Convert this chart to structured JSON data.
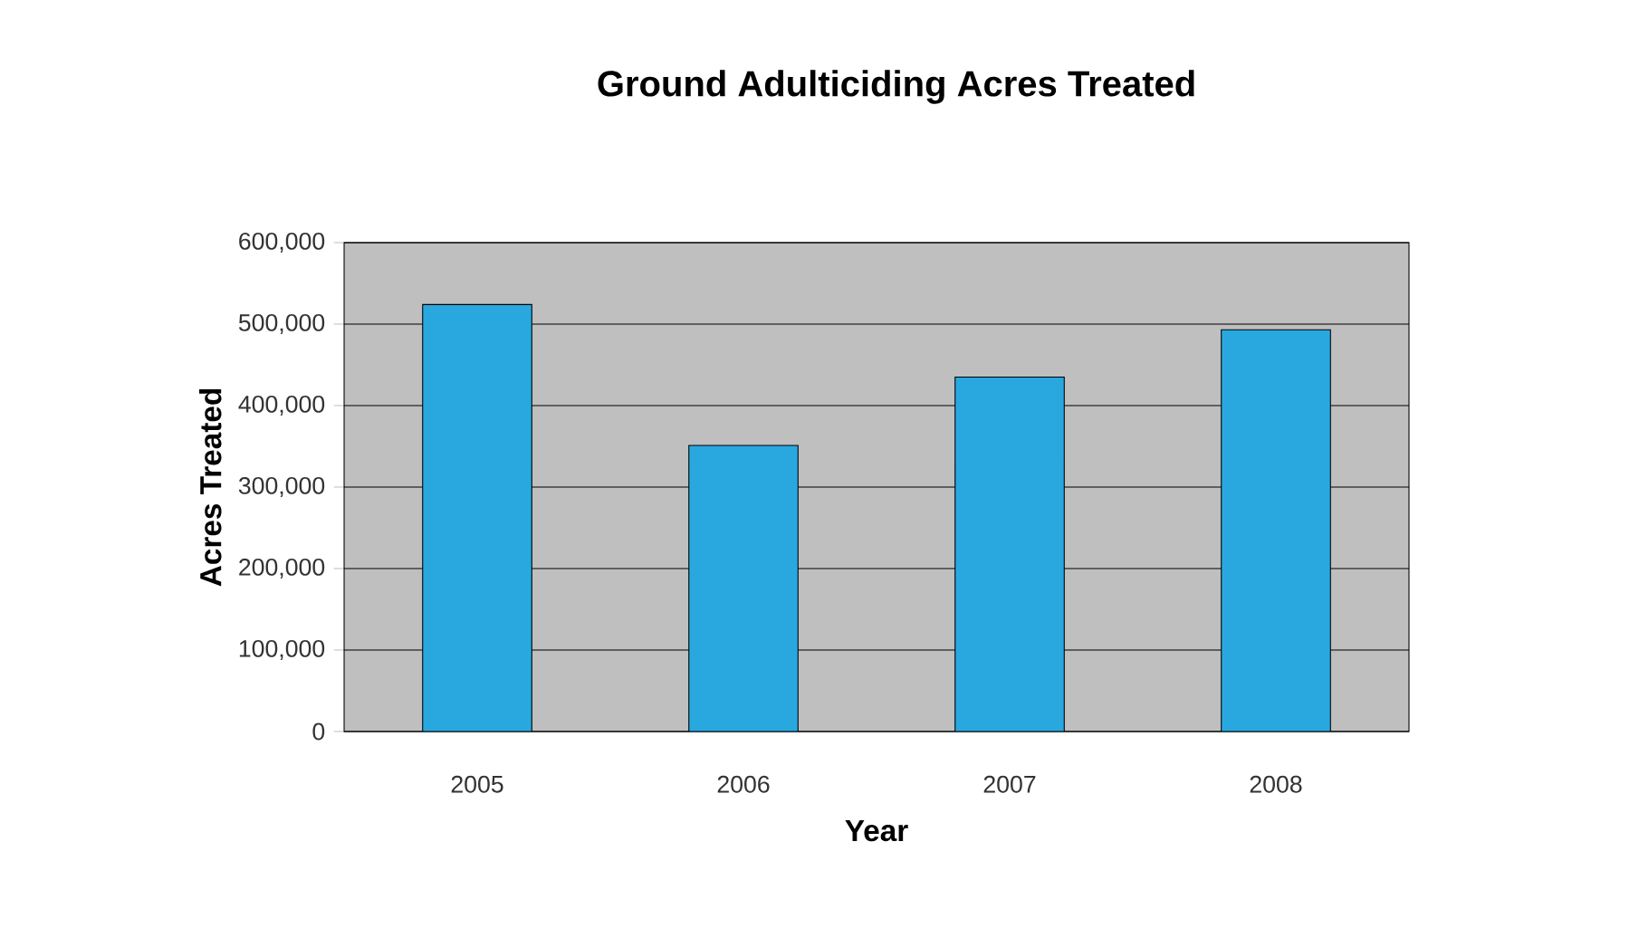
{
  "chart_data": {
    "type": "bar",
    "title": "Ground  Adulticiding Acres Treated",
    "xlabel": "Year",
    "ylabel": "Acres Treated",
    "categories": [
      "2005",
      "2006",
      "2007",
      "2008"
    ],
    "values": [
      524000,
      351000,
      435000,
      493000
    ],
    "color": "#29a8e0",
    "ylim": [
      0,
      600000
    ],
    "yticks": [
      0,
      {
        "value": 100000,
        "label": "100,000"
      },
      {
        "value": 200000,
        "label": "200,000"
      },
      {
        "value": 300000,
        "label": "300,000"
      },
      {
        "value": 400000,
        "label": "400,000"
      },
      {
        "value": 500000,
        "label": "500,000"
      },
      {
        "value": 600000,
        "label": "600,000"
      }
    ],
    "grid": "y"
  }
}
